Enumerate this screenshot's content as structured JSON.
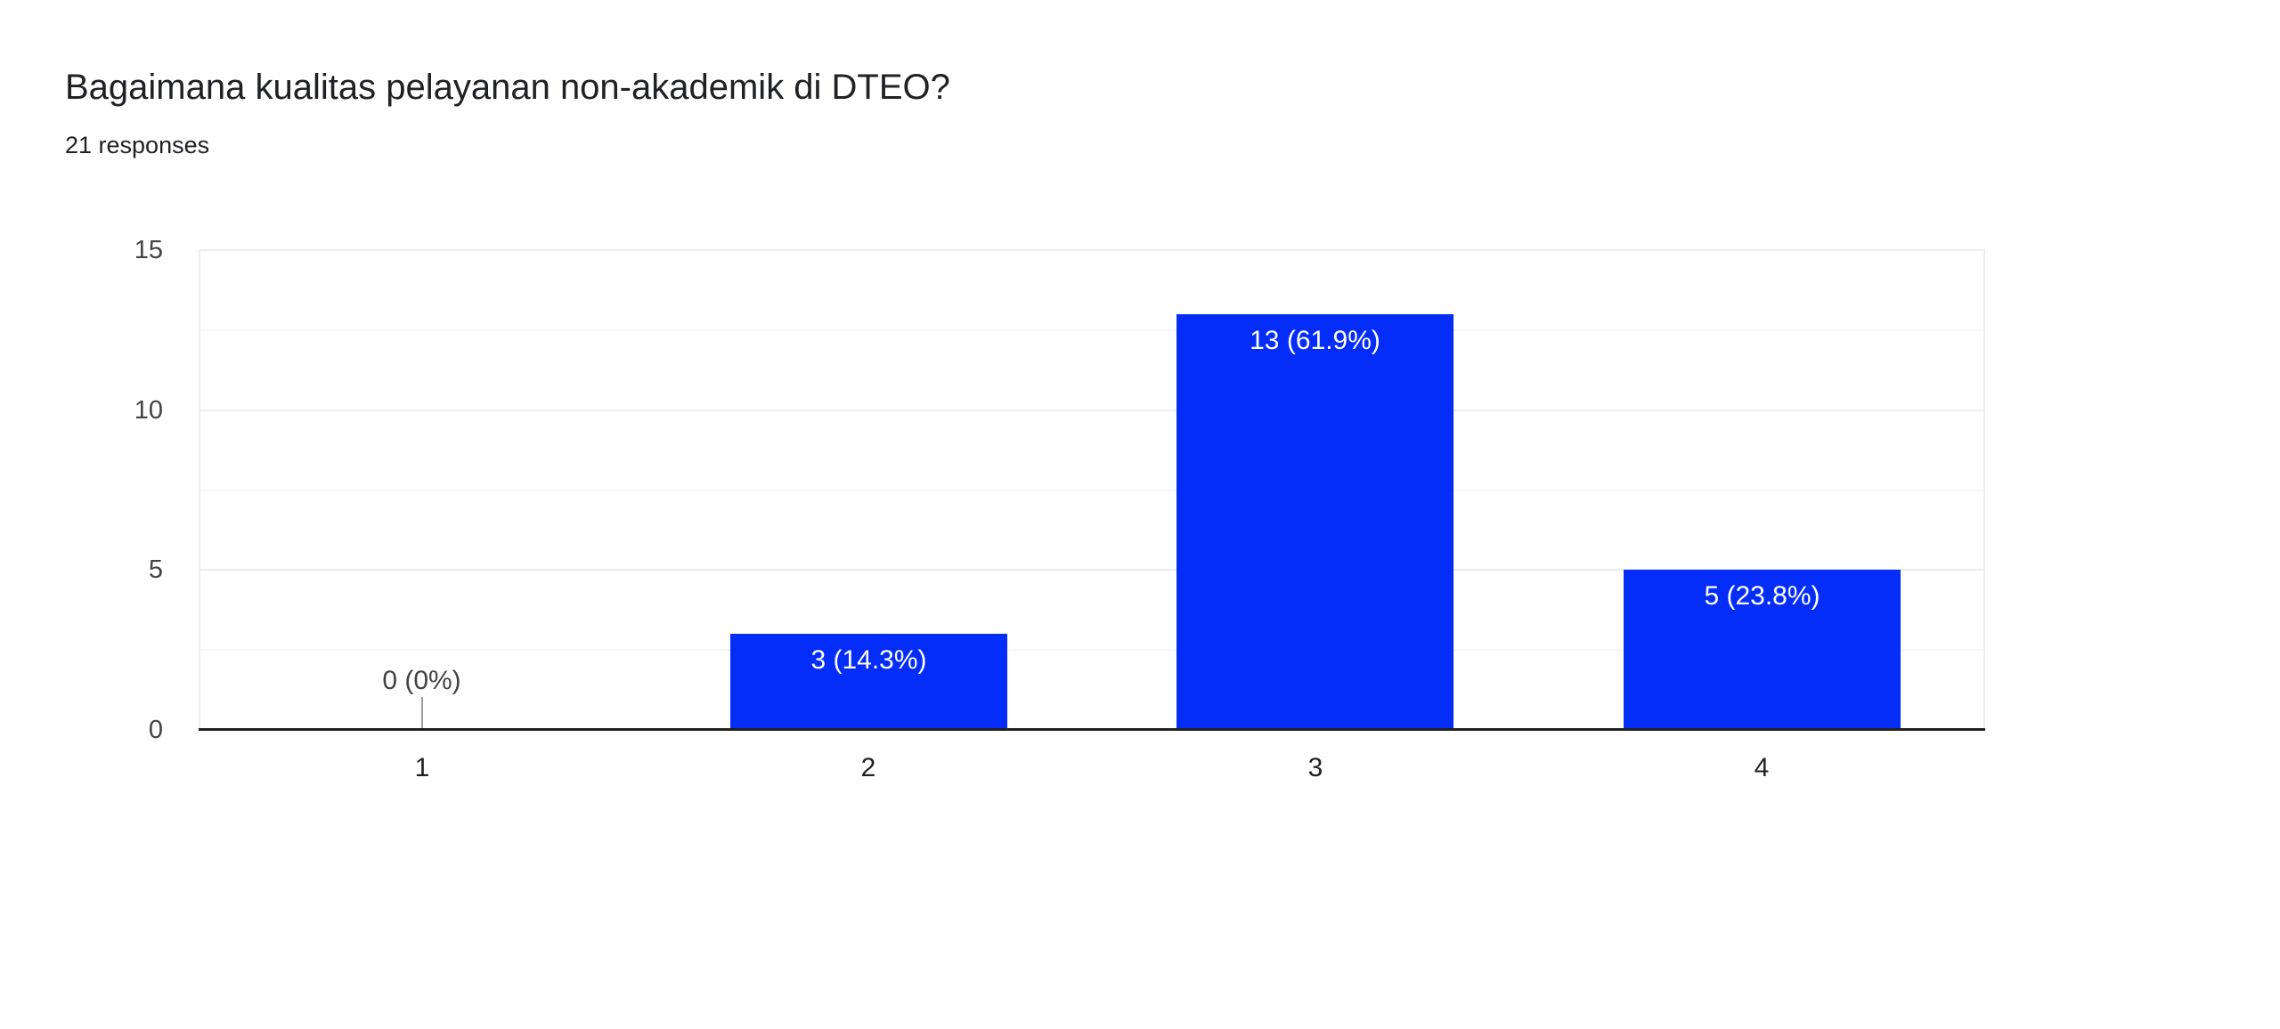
{
  "header": {
    "title": "Bagaimana kualitas pelayanan non-akademik di DTEO?",
    "subtitle": "21 responses"
  },
  "chart_data": {
    "type": "bar",
    "title": "Bagaimana kualitas pelayanan non-akademik di DTEO?",
    "subtitle": "21 responses",
    "total_responses": 21,
    "categories": [
      "1",
      "2",
      "3",
      "4"
    ],
    "values": [
      0,
      3,
      13,
      5
    ],
    "value_labels": [
      "0 (0%)",
      "3 (14.3%)",
      "13 (61.9%)",
      "5 (23.8%)"
    ],
    "xlabel": "",
    "ylabel": "",
    "ylim": [
      0,
      15
    ],
    "yticks": [
      0,
      5,
      10,
      15
    ],
    "gridline_step": 2.5,
    "grid": true,
    "legend": "none",
    "colors": {
      "bar": "#052dfa",
      "bar_label_text": "#ffffff",
      "zero_label_text": "#424242",
      "zero_tick": "#9e9e9e",
      "axis_line": "#212121",
      "gridline_major": "#ededed",
      "gridline_minor": "#f6f6f6",
      "y_tick_text": "#424242",
      "x_tick_text": "#212121",
      "title_text": "#202124"
    }
  }
}
